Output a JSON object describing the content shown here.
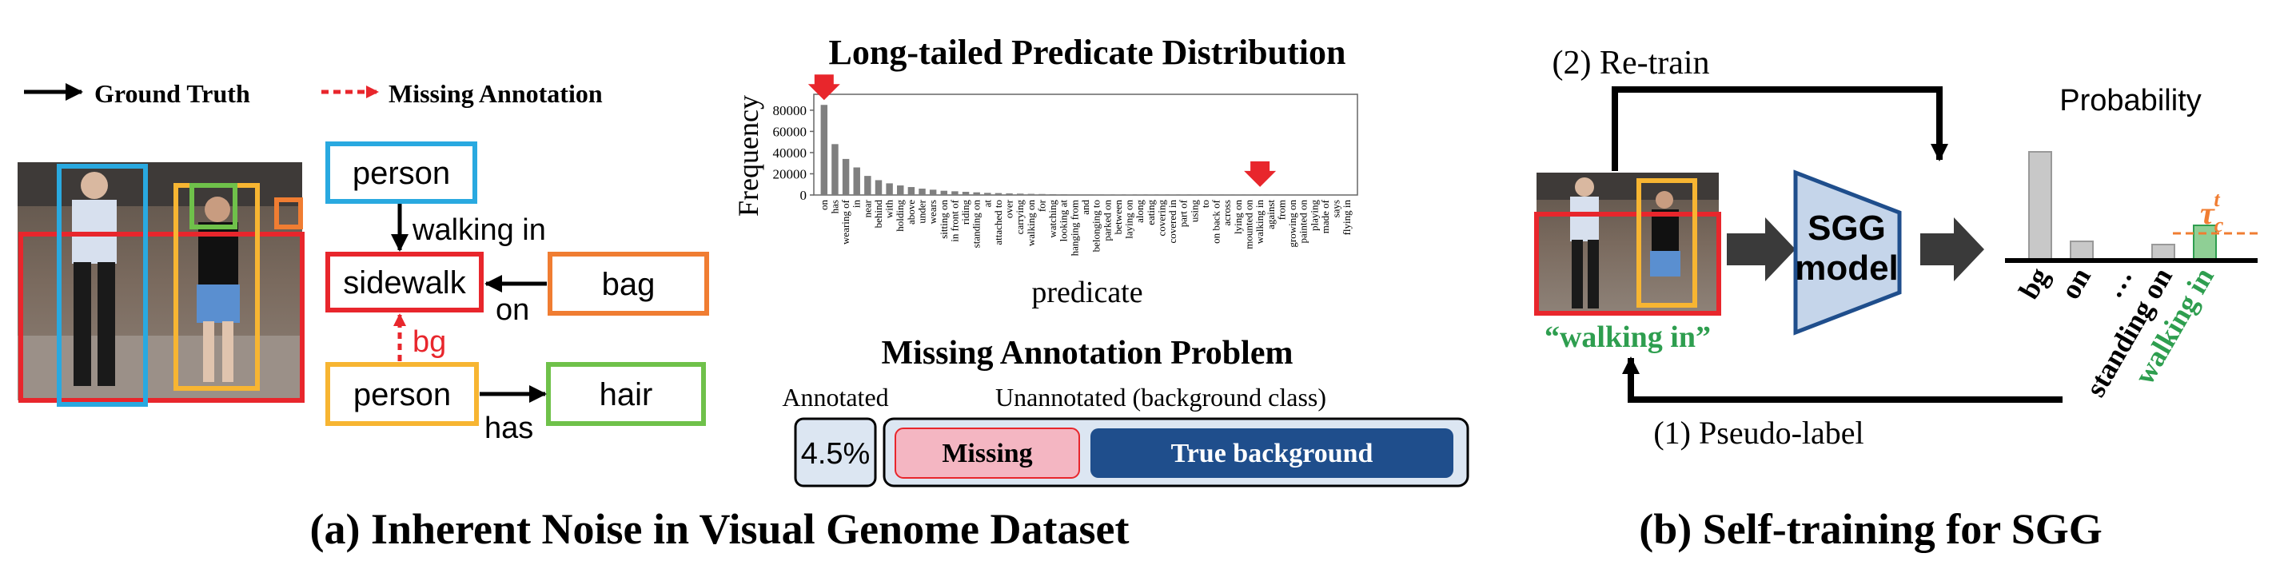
{
  "legend": {
    "ground_truth": "Ground Truth",
    "missing_annotation": "Missing Annotation"
  },
  "scene_graph": {
    "nodes": [
      {
        "id": "person1",
        "label": "person",
        "color": "#29a9e0"
      },
      {
        "id": "sidewalk",
        "label": "sidewalk",
        "color": "#e8262c"
      },
      {
        "id": "bag",
        "label": "bag",
        "color": "#f07d32"
      },
      {
        "id": "person2",
        "label": "person",
        "color": "#f7b532"
      },
      {
        "id": "hair",
        "label": "hair",
        "color": "#6fc14a"
      }
    ],
    "edges": [
      {
        "from": "person1",
        "to": "sidewalk",
        "label": "walking in",
        "type": "ground_truth"
      },
      {
        "from": "bag",
        "to": "sidewalk",
        "label": "on",
        "type": "ground_truth"
      },
      {
        "from": "person2",
        "to": "sidewalk",
        "label": "bg",
        "type": "missing"
      },
      {
        "from": "person2",
        "to": "hair",
        "label": "has",
        "type": "ground_truth"
      }
    ]
  },
  "distribution": {
    "title": "Long-tailed Predicate Distribution",
    "ylabel": "Frequency",
    "xlabel": "predicate",
    "bar_color": "#7f7f7f",
    "arrow_color": "#e8262c"
  },
  "chart_data": {
    "type": "bar",
    "ylim": [
      0,
      95000
    ],
    "yticks": [
      0,
      20000,
      40000,
      60000,
      80000
    ],
    "categories": [
      "on",
      "has",
      "wearing of",
      "in",
      "near",
      "behind",
      "with",
      "holding",
      "above",
      "under",
      "wears",
      "sitting on",
      "in front of",
      "riding",
      "standing on",
      "at",
      "attached to",
      "over",
      "carrying",
      "walking on",
      "for",
      "watching",
      "looking at",
      "hanging from",
      "and",
      "belonging to",
      "parked on",
      "between",
      "laying on",
      "along",
      "eating",
      "covering",
      "covered in",
      "part of",
      "using",
      "to",
      "on back of",
      "across",
      "lying on",
      "mounted on",
      "walking in",
      "against",
      "from",
      "growing on",
      "painted on",
      "playing",
      "made of",
      "says",
      "flying in"
    ],
    "values": [
      85000,
      48000,
      34000,
      26000,
      18000,
      14000,
      11000,
      9000,
      7500,
      6000,
      5000,
      4000,
      3500,
      3000,
      2500,
      2000,
      1800,
      1500,
      1300,
      1100,
      950,
      800,
      700,
      600,
      550,
      500,
      450,
      400,
      350,
      300,
      280,
      260,
      240,
      220,
      200,
      180,
      160,
      140,
      120,
      110,
      100,
      90,
      80,
      70,
      60,
      50,
      40,
      30,
      20
    ],
    "highlighted": [
      "on",
      "walking in"
    ]
  },
  "missing_problem": {
    "title": "Missing Annotation Problem",
    "annotated_label": "Annotated",
    "unannotated_label": "Unannotated (background class)",
    "percent": "4.5%",
    "missing": "Missing",
    "true_background": "True background",
    "colors": {
      "panel": "#dce6f2",
      "missing": "#f4b6c2",
      "true_bg": "#1f4e8c"
    }
  },
  "caption_a": "(a) Inherent Noise in Visual Genome Dataset",
  "self_training": {
    "retrain": "(2) Re-train",
    "pseudo_label": "(1) Pseudo-label",
    "model_line1": "SGG",
    "model_line2": "model",
    "probability": "Probability",
    "image_caption": "“walking in”",
    "threshold_base": "τ",
    "threshold_sub": "c",
    "threshold_sup": "t",
    "classes": [
      "bg",
      "on",
      "…",
      "standing on",
      "walking in"
    ],
    "probabilities": [
      0.68,
      0.12,
      0,
      0.1,
      0.22
    ],
    "threshold": 0.17,
    "colors": {
      "model": "#c5d5ea",
      "highlight": "#2e9e4f",
      "threshold": "#f07d32",
      "prob_bar": "#c8c8c8"
    }
  },
  "caption_b": "(b) Self-training for SGG"
}
